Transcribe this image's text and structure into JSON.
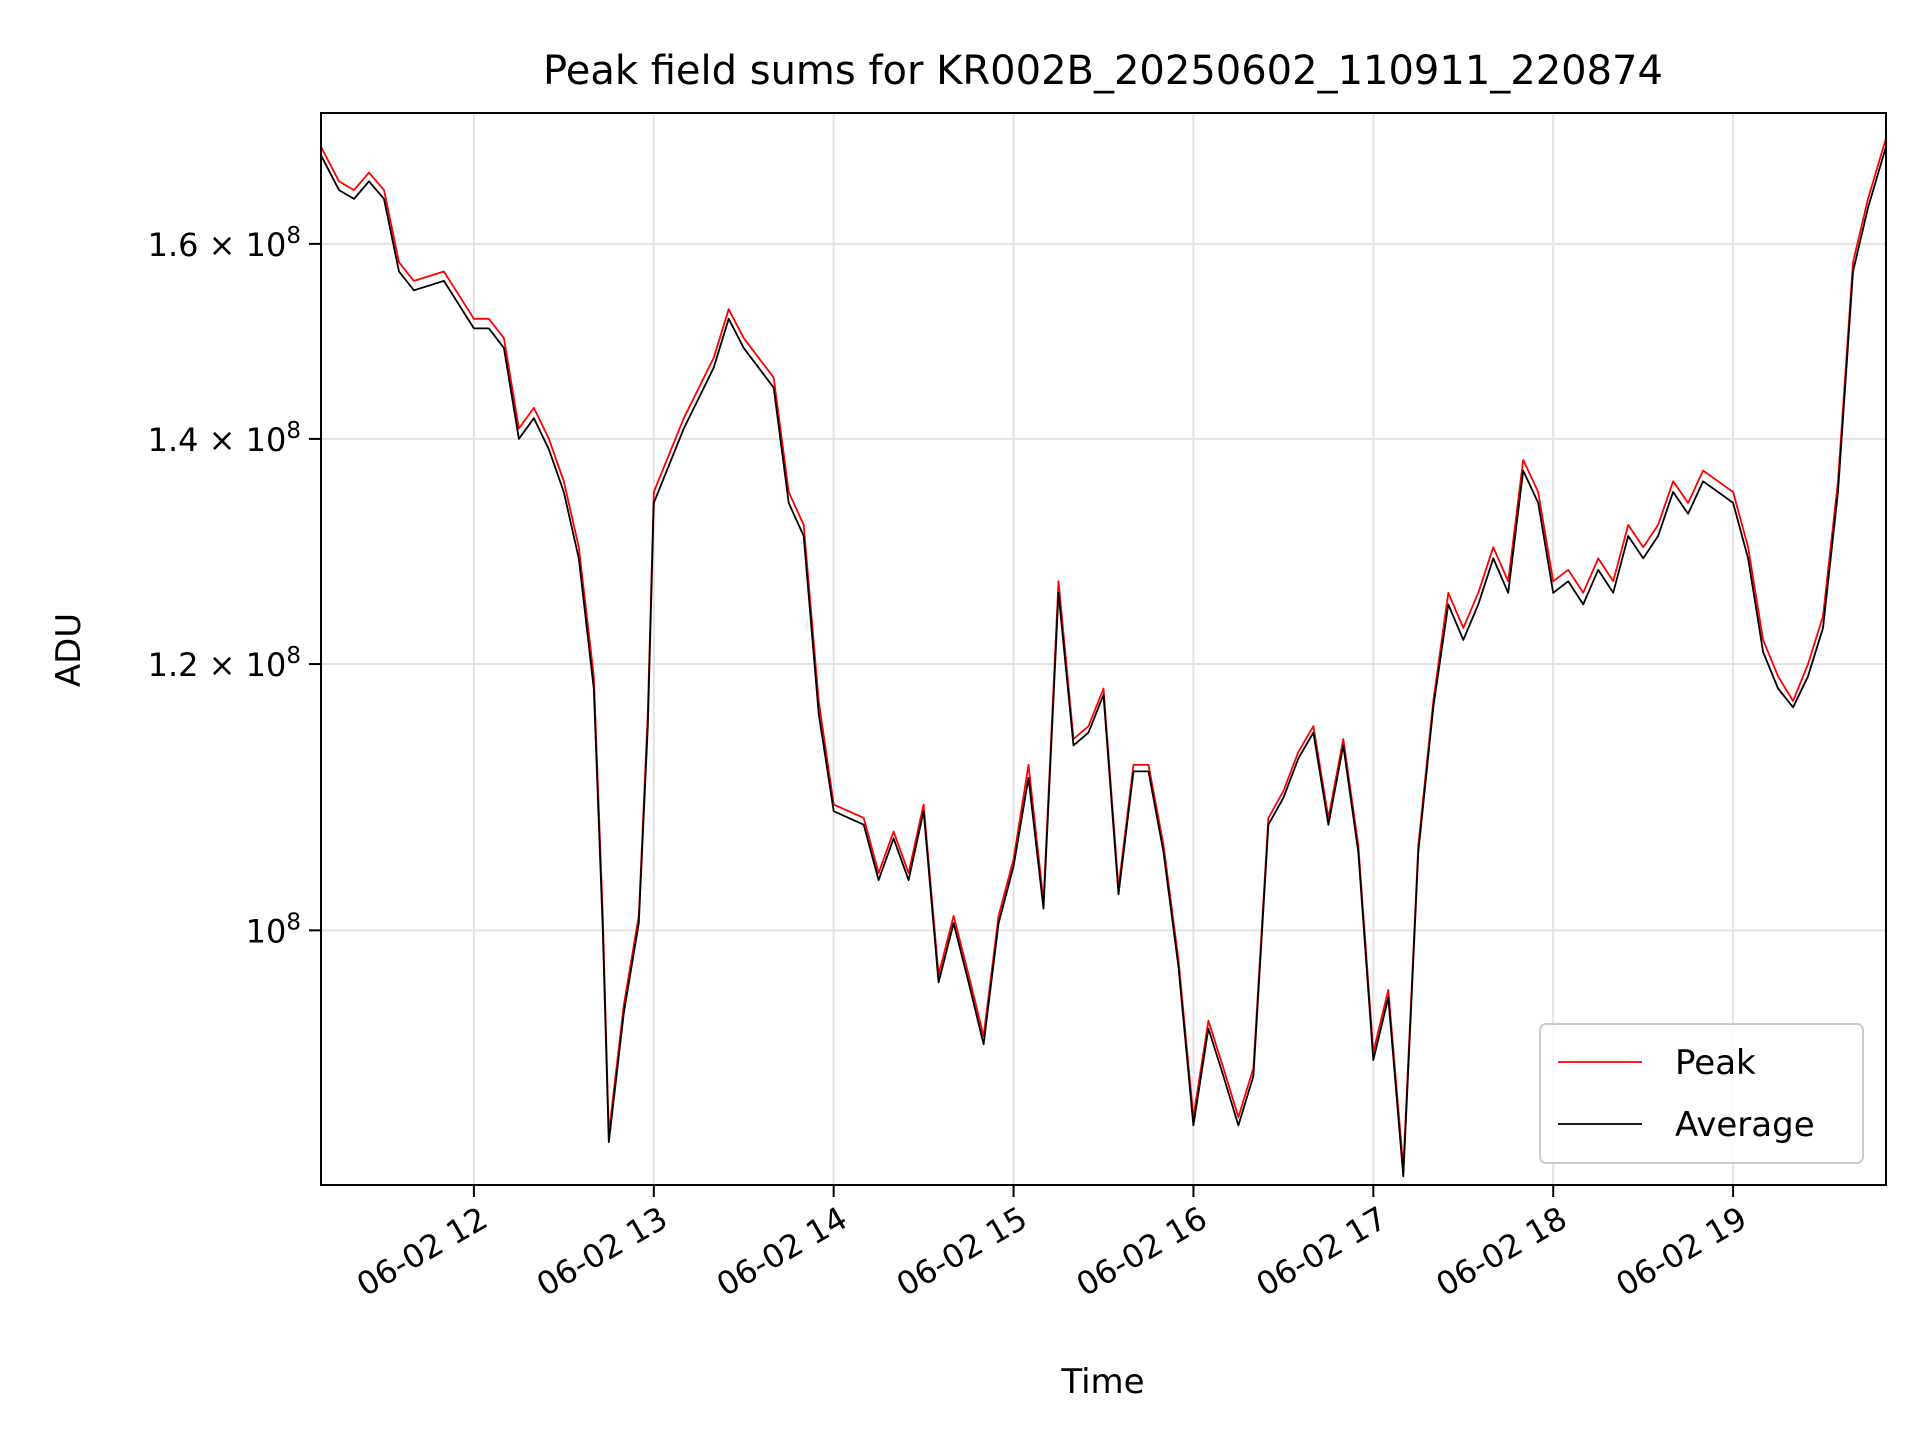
{
  "chart_data": {
    "type": "line",
    "title": "Peak field sums for KR002B_20250602_110911_220874",
    "xlabel": "Time",
    "ylabel": "ADU",
    "x_ticks": [
      "06-02 12",
      "06-02 13",
      "06-02 14",
      "06-02 15",
      "06-02 16",
      "06-02 17",
      "06-02 18",
      "06-02 19"
    ],
    "y_scale": "log",
    "y_ticks": [
      {
        "value": 100000000,
        "label": "10^8"
      },
      {
        "value": 120000000,
        "label": "1.2 × 10^8"
      },
      {
        "value": 140000000,
        "label": "1.4 × 10^8"
      },
      {
        "value": 160000000,
        "label": "1.6 × 10^8"
      }
    ],
    "xlim": [
      "06-02 11:09",
      "06-02 19:51"
    ],
    "ylim": [
      84000000,
      175000000
    ],
    "grid": true,
    "legend_position": "lower-right",
    "series": [
      {
        "name": "Peak",
        "color": "#ff0000",
        "x": [
          "06-02 11:09",
          "06-02 11:15",
          "06-02 11:20",
          "06-02 11:25",
          "06-02 11:30",
          "06-02 11:35",
          "06-02 11:40",
          "06-02 11:50",
          "06-02 12:00",
          "06-02 12:05",
          "06-02 12:10",
          "06-02 12:15",
          "06-02 12:20",
          "06-02 12:25",
          "06-02 12:30",
          "06-02 12:35",
          "06-02 12:40",
          "06-02 12:43",
          "06-02 12:45",
          "06-02 12:50",
          "06-02 12:55",
          "06-02 12:58",
          "06-02 13:00",
          "06-02 13:10",
          "06-02 13:20",
          "06-02 13:25",
          "06-02 13:30",
          "06-02 13:40",
          "06-02 13:45",
          "06-02 13:50",
          "06-02 13:55",
          "06-02 14:00",
          "06-02 14:10",
          "06-02 14:15",
          "06-02 14:20",
          "06-02 14:25",
          "06-02 14:30",
          "06-02 14:35",
          "06-02 14:40",
          "06-02 14:45",
          "06-02 14:50",
          "06-02 14:55",
          "06-02 15:00",
          "06-02 15:05",
          "06-02 15:10",
          "06-02 15:15",
          "06-02 15:20",
          "06-02 15:25",
          "06-02 15:30",
          "06-02 15:35",
          "06-02 15:40",
          "06-02 15:45",
          "06-02 15:50",
          "06-02 15:55",
          "06-02 16:00",
          "06-02 16:05",
          "06-02 16:10",
          "06-02 16:15",
          "06-02 16:20",
          "06-02 16:25",
          "06-02 16:30",
          "06-02 16:35",
          "06-02 16:40",
          "06-02 16:45",
          "06-02 16:50",
          "06-02 16:55",
          "06-02 17:00",
          "06-02 17:05",
          "06-02 17:10",
          "06-02 17:15",
          "06-02 17:20",
          "06-02 17:25",
          "06-02 17:30",
          "06-02 17:35",
          "06-02 17:40",
          "06-02 17:45",
          "06-02 17:50",
          "06-02 17:55",
          "06-02 18:00",
          "06-02 18:05",
          "06-02 18:10",
          "06-02 18:15",
          "06-02 18:20",
          "06-02 18:25",
          "06-02 18:30",
          "06-02 18:35",
          "06-02 18:40",
          "06-02 18:45",
          "06-02 18:50",
          "06-02 18:55",
          "06-02 19:00",
          "06-02 19:05",
          "06-02 19:10",
          "06-02 19:15",
          "06-02 19:20",
          "06-02 19:25",
          "06-02 19:30",
          "06-02 19:35",
          "06-02 19:40",
          "06-02 19:45",
          "06-02 19:51"
        ],
        "values": [
          171000000,
          167000000,
          166000000,
          168000000,
          166000000,
          158000000,
          156000000,
          157000000,
          152000000,
          152000000,
          150000000,
          141000000,
          143000000,
          140000000,
          136000000,
          130000000,
          119000000,
          101000000,
          87000000,
          95000000,
          101000000,
          116000000,
          135000000,
          142000000,
          148000000,
          153000000,
          150000000,
          146000000,
          135000000,
          132000000,
          117000000,
          109000000,
          108000000,
          104000000,
          107000000,
          104000000,
          109000000,
          97000000,
          101000000,
          97000000,
          93000000,
          101000000,
          105000000,
          112000000,
          102000000,
          127000000,
          114000000,
          115000000,
          118000000,
          103000000,
          112000000,
          112000000,
          106000000,
          98000000,
          88000000,
          94000000,
          91000000,
          88000000,
          91000000,
          108000000,
          110000000,
          113000000,
          115000000,
          108000000,
          114000000,
          106000000,
          92000000,
          96000000,
          85000000,
          106000000,
          117000000,
          126000000,
          123000000,
          126000000,
          130000000,
          127000000,
          138000000,
          135000000,
          127000000,
          128000000,
          126000000,
          129000000,
          127000000,
          132000000,
          130000000,
          132000000,
          136000000,
          134000000,
          137000000,
          136000000,
          135000000,
          130000000,
          122000000,
          119000000,
          117000000,
          120000000,
          124000000,
          136000000,
          158000000,
          165000000,
          172000000
        ]
      },
      {
        "name": "Average",
        "color": "#000000",
        "x": [
          "06-02 11:09",
          "06-02 11:15",
          "06-02 11:20",
          "06-02 11:25",
          "06-02 11:30",
          "06-02 11:35",
          "06-02 11:40",
          "06-02 11:50",
          "06-02 12:00",
          "06-02 12:05",
          "06-02 12:10",
          "06-02 12:15",
          "06-02 12:20",
          "06-02 12:25",
          "06-02 12:30",
          "06-02 12:35",
          "06-02 12:40",
          "06-02 12:43",
          "06-02 12:45",
          "06-02 12:50",
          "06-02 12:55",
          "06-02 12:58",
          "06-02 13:00",
          "06-02 13:10",
          "06-02 13:20",
          "06-02 13:25",
          "06-02 13:30",
          "06-02 13:40",
          "06-02 13:45",
          "06-02 13:50",
          "06-02 13:55",
          "06-02 14:00",
          "06-02 14:10",
          "06-02 14:15",
          "06-02 14:20",
          "06-02 14:25",
          "06-02 14:30",
          "06-02 14:35",
          "06-02 14:40",
          "06-02 14:45",
          "06-02 14:50",
          "06-02 14:55",
          "06-02 15:00",
          "06-02 15:05",
          "06-02 15:10",
          "06-02 15:15",
          "06-02 15:20",
          "06-02 15:25",
          "06-02 15:30",
          "06-02 15:35",
          "06-02 15:40",
          "06-02 15:45",
          "06-02 15:50",
          "06-02 15:55",
          "06-02 16:00",
          "06-02 16:05",
          "06-02 16:10",
          "06-02 16:15",
          "06-02 16:20",
          "06-02 16:25",
          "06-02 16:30",
          "06-02 16:35",
          "06-02 16:40",
          "06-02 16:45",
          "06-02 16:50",
          "06-02 16:55",
          "06-02 17:00",
          "06-02 17:05",
          "06-02 17:10",
          "06-02 17:15",
          "06-02 17:20",
          "06-02 17:25",
          "06-02 17:30",
          "06-02 17:35",
          "06-02 17:40",
          "06-02 17:45",
          "06-02 17:50",
          "06-02 17:55",
          "06-02 18:00",
          "06-02 18:05",
          "06-02 18:10",
          "06-02 18:15",
          "06-02 18:20",
          "06-02 18:25",
          "06-02 18:30",
          "06-02 18:35",
          "06-02 18:40",
          "06-02 18:45",
          "06-02 18:50",
          "06-02 18:55",
          "06-02 19:00",
          "06-02 19:05",
          "06-02 19:10",
          "06-02 19:15",
          "06-02 19:20",
          "06-02 19:25",
          "06-02 19:30",
          "06-02 19:35",
          "06-02 19:40",
          "06-02 19:45",
          "06-02 19:51"
        ],
        "values": [
          170000000,
          166000000,
          165000000,
          167000000,
          165000000,
          157000000,
          155000000,
          156000000,
          151000000,
          151000000,
          149000000,
          140000000,
          142000000,
          139000000,
          135000000,
          129000000,
          118000000,
          100000000,
          86500000,
          94500000,
          100500000,
          115000000,
          134000000,
          141000000,
          147000000,
          152000000,
          149000000,
          145000000,
          134000000,
          131000000,
          116000000,
          108500000,
          107500000,
          103500000,
          106500000,
          103500000,
          108500000,
          96500000,
          100500000,
          96500000,
          92500000,
          100500000,
          104500000,
          111000000,
          101500000,
          126000000,
          113500000,
          114500000,
          117500000,
          102500000,
          111500000,
          111500000,
          105500000,
          97500000,
          87500000,
          93500000,
          90500000,
          87500000,
          90500000,
          107500000,
          109500000,
          112500000,
          114500000,
          107500000,
          113500000,
          105500000,
          91500000,
          95500000,
          84500000,
          105500000,
          116500000,
          125000000,
          122000000,
          125000000,
          129000000,
          126000000,
          137000000,
          134000000,
          126000000,
          127000000,
          125000000,
          128000000,
          126000000,
          131000000,
          129000000,
          131000000,
          135000000,
          133000000,
          136000000,
          135000000,
          134000000,
          129000000,
          121000000,
          118000000,
          116500000,
          119000000,
          123000000,
          135000000,
          157000000,
          164000000,
          171000000
        ]
      }
    ]
  }
}
